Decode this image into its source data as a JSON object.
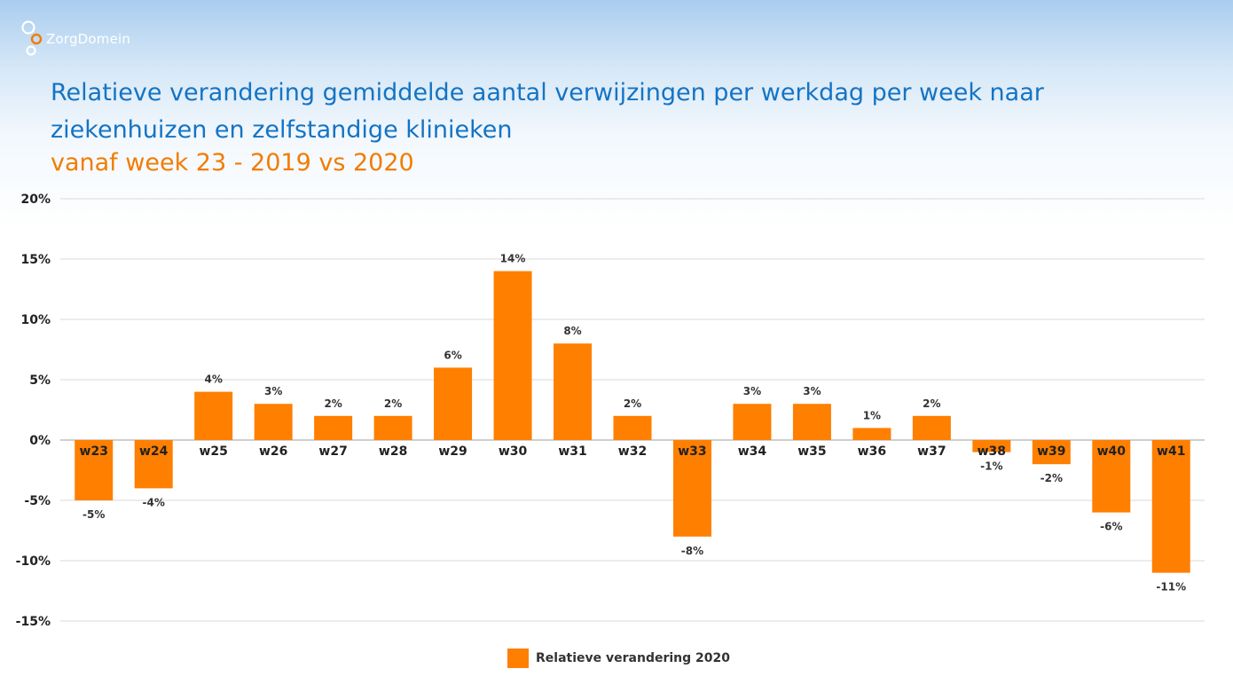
{
  "brand": {
    "logo_text": "ZorgDomein",
    "logo_icon": "zorgdomein-bubbles-icon"
  },
  "chart_data": {
    "type": "bar",
    "title": "Relatieve verandering gemiddelde aantal verwijzingen per werkdag per week naar ziekenhuizen en zelfstandige klinieken",
    "subtitle": "vanaf week 23 - 2019 vs 2020",
    "categories": [
      "w23",
      "w24",
      "w25",
      "w26",
      "w27",
      "w28",
      "w29",
      "w30",
      "w31",
      "w32",
      "w33",
      "w34",
      "w35",
      "w36",
      "w37",
      "w38",
      "w39",
      "w40",
      "w41"
    ],
    "series": [
      {
        "name": "Relatieve verandering 2020",
        "values": [
          -5,
          -4,
          4,
          3,
          2,
          2,
          6,
          14,
          8,
          2,
          -8,
          3,
          3,
          1,
          2,
          -1,
          -2,
          -6,
          -11
        ],
        "labels": [
          "-5%",
          "-4%",
          "4%",
          "3%",
          "2%",
          "2%",
          "6%",
          "14%",
          "8%",
          "2%",
          "-8%",
          "3%",
          "3%",
          "1%",
          "2%",
          "-1%",
          "-2%",
          "-6%",
          "-11%"
        ],
        "color": "#ff7f00"
      }
    ],
    "yticks": [
      20,
      15,
      10,
      5,
      0,
      -5,
      -10,
      -15
    ],
    "ytick_labels": [
      "20%",
      "15%",
      "10%",
      "5%",
      "0%",
      "-5%",
      "-10%",
      "-15%"
    ],
    "ylim": [
      -15,
      20
    ],
    "xlabel": "",
    "ylabel": "",
    "grid": true,
    "legend_position": "bottom-center"
  },
  "colors": {
    "title": "#1474c4",
    "subtitle": "#f27c00",
    "bar": "#ff7f00",
    "grid": "#d9d9d9"
  }
}
